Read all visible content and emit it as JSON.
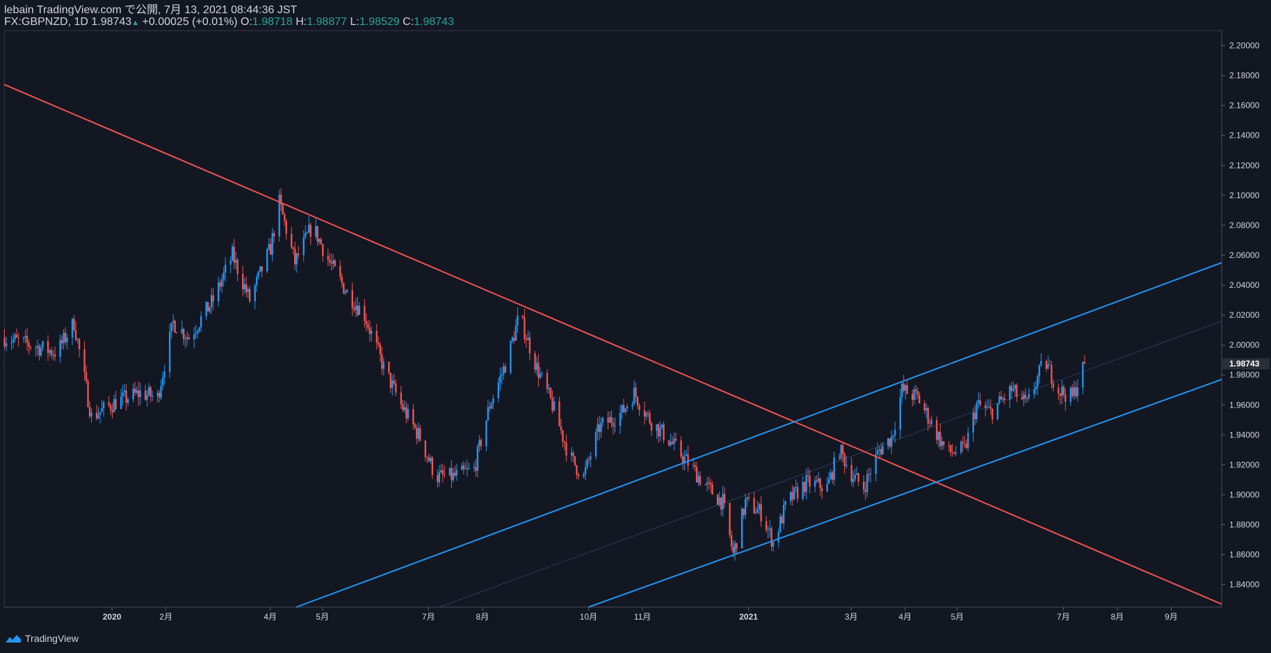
{
  "header": {
    "publish_line": "lebain TradingView.com で公開, 7月 13, 2021 08:44:36 JST",
    "symbol": "FX:GBPNZD, 1D",
    "last": "1.98743",
    "change": "+0.00025 (+0.01%)",
    "o_label": "O:",
    "o_value": "1.98718",
    "h_label": "H:",
    "h_value": "1.98877",
    "l_label": "L:",
    "l_value": "1.98529",
    "c_label": "C:",
    "c_value": "1.98743"
  },
  "footer": {
    "brand": "TradingView"
  },
  "colors": {
    "background": "#131722",
    "up": "#2196f3",
    "down": "#ef5350",
    "resistance_line": "#ef5350",
    "channel_line": "#2196f3",
    "text": "#d1d4dc",
    "value_text": "#26a69a"
  },
  "chart_data": {
    "type": "candlestick",
    "ylim": [
      1.825,
      2.21
    ],
    "xlim": [
      "2019-10-31",
      "2021-09-30"
    ],
    "y_ticks": [
      "2.20000",
      "2.18000",
      "2.16000",
      "2.14000",
      "2.12000",
      "2.10000",
      "2.08000",
      "2.06000",
      "2.04000",
      "2.02000",
      "2.00000",
      "1.98000",
      "1.96000",
      "1.94000",
      "1.92000",
      "1.90000",
      "1.88000",
      "1.86000",
      "1.84000"
    ],
    "x_ticks": [
      {
        "date": "2020-01-01",
        "label": "2020"
      },
      {
        "date": "2020-02-01",
        "label": "2月"
      },
      {
        "date": "2020-04-01",
        "label": "4月"
      },
      {
        "date": "2020-05-01",
        "label": "5月"
      },
      {
        "date": "2020-07-01",
        "label": "7月"
      },
      {
        "date": "2020-08-01",
        "label": "8月"
      },
      {
        "date": "2020-10-01",
        "label": "10月"
      },
      {
        "date": "2020-11-01",
        "label": "11月"
      },
      {
        "date": "2021-01-01",
        "label": "2021"
      },
      {
        "date": "2021-03-01",
        "label": "3月"
      },
      {
        "date": "2021-04-01",
        "label": "4月"
      },
      {
        "date": "2021-05-01",
        "label": "5月"
      },
      {
        "date": "2021-07-01",
        "label": "7月"
      },
      {
        "date": "2021-08-01",
        "label": "8月"
      },
      {
        "date": "2021-09-01",
        "label": "9月"
      }
    ],
    "last_price": "1.98743",
    "price_path": [
      [
        "2019-10-31",
        2.005
      ],
      [
        "2019-11-15",
        2.0
      ],
      [
        "2019-11-30",
        1.995
      ],
      [
        "2019-12-10",
        2.015
      ],
      [
        "2019-12-20",
        1.952
      ],
      [
        "2020-01-03",
        1.962
      ],
      [
        "2020-01-17",
        1.968
      ],
      [
        "2020-01-27",
        1.965
      ],
      [
        "2020-02-05",
        2.015
      ],
      [
        "2020-02-14",
        2.005
      ],
      [
        "2020-02-28",
        2.03
      ],
      [
        "2020-03-10",
        2.06
      ],
      [
        "2020-03-20",
        2.03
      ],
      [
        "2020-04-01",
        2.065
      ],
      [
        "2020-04-06",
        2.095
      ],
      [
        "2020-04-15",
        2.055
      ],
      [
        "2020-04-25",
        2.08
      ],
      [
        "2020-05-05",
        2.055
      ],
      [
        "2020-05-15",
        2.035
      ],
      [
        "2020-05-25",
        2.02
      ],
      [
        "2020-06-05",
        1.985
      ],
      [
        "2020-06-15",
        1.96
      ],
      [
        "2020-06-26",
        1.938
      ],
      [
        "2020-07-05",
        1.912
      ],
      [
        "2020-07-15",
        1.912
      ],
      [
        "2020-07-27",
        1.917
      ],
      [
        "2020-08-05",
        1.96
      ],
      [
        "2020-08-15",
        1.99
      ],
      [
        "2020-08-22",
        2.02
      ],
      [
        "2020-09-01",
        1.985
      ],
      [
        "2020-09-10",
        1.96
      ],
      [
        "2020-09-20",
        1.925
      ],
      [
        "2020-09-28",
        1.912
      ],
      [
        "2020-10-07",
        1.945
      ],
      [
        "2020-10-20",
        1.955
      ],
      [
        "2020-10-27",
        1.968
      ],
      [
        "2020-11-05",
        1.95
      ],
      [
        "2020-11-15",
        1.938
      ],
      [
        "2020-11-28",
        1.92
      ],
      [
        "2020-12-08",
        1.905
      ],
      [
        "2020-12-17",
        1.895
      ],
      [
        "2020-12-23",
        1.86
      ],
      [
        "2020-12-30",
        1.895
      ],
      [
        "2021-01-08",
        1.888
      ],
      [
        "2021-01-15",
        1.868
      ],
      [
        "2021-01-23",
        1.895
      ],
      [
        "2021-02-03",
        1.908
      ],
      [
        "2021-02-15",
        1.905
      ],
      [
        "2021-02-22",
        1.93
      ],
      [
        "2021-03-02",
        1.912
      ],
      [
        "2021-03-08",
        1.905
      ],
      [
        "2021-03-17",
        1.93
      ],
      [
        "2021-03-24",
        1.938
      ],
      [
        "2021-03-30",
        1.97
      ],
      [
        "2021-04-08",
        1.965
      ],
      [
        "2021-04-15",
        1.95
      ],
      [
        "2021-04-25",
        1.928
      ],
      [
        "2021-05-05",
        1.93
      ],
      [
        "2021-05-12",
        1.96
      ],
      [
        "2021-05-20",
        1.955
      ],
      [
        "2021-06-01",
        1.97
      ],
      [
        "2021-06-10",
        1.96
      ],
      [
        "2021-06-20",
        1.99
      ],
      [
        "2021-06-28",
        1.97
      ],
      [
        "2021-07-06",
        1.965
      ],
      [
        "2021-07-13",
        1.98743
      ]
    ],
    "trendlines": [
      {
        "name": "resistance",
        "color": "#ef5350",
        "p1": [
          "2019-10-31",
          2.174
        ],
        "p2": [
          "2021-09-30",
          1.827
        ]
      },
      {
        "name": "channel-upper",
        "color": "#2196f3",
        "p1": [
          "2020-04-16",
          1.825
        ],
        "p2": [
          "2021-09-30",
          2.055
        ]
      },
      {
        "name": "channel-lower",
        "color": "#2196f3",
        "p1": [
          "2020-10-01",
          1.825
        ],
        "p2": [
          "2021-09-30",
          1.977
        ]
      }
    ],
    "midline": {
      "p1": [
        "2020-07-07",
        1.825
      ],
      "p2": [
        "2021-09-30",
        2.016
      ]
    }
  }
}
